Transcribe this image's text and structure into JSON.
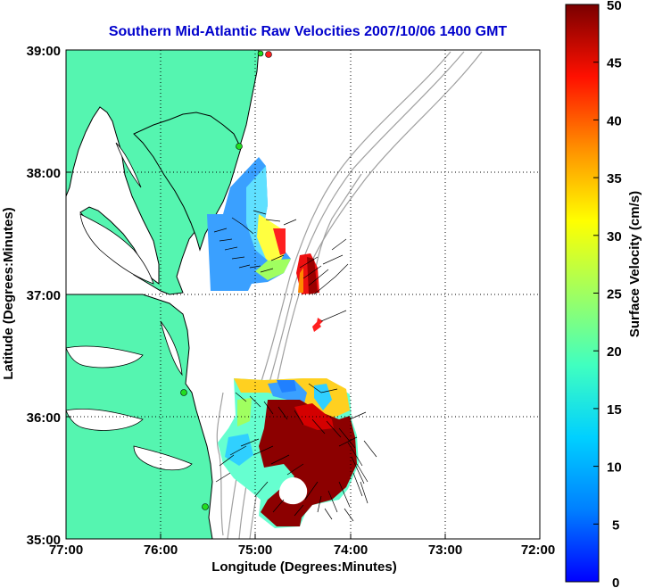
{
  "title": "Southern Mid-Atlantic Raw Velocities 2007/10/06 1400 GMT",
  "x_axis": {
    "label": "Longitude (Degrees:Minutes)",
    "ticks": [
      "77:00",
      "76:00",
      "75:00",
      "74:00",
      "73:00",
      "72:00"
    ]
  },
  "y_axis": {
    "label": "Latitude (Degrees:Minutes)",
    "ticks": [
      "39:00",
      "38:00",
      "37:00",
      "36:00",
      "35:00"
    ]
  },
  "colorbar": {
    "label": "Surface Velocity (cm/s)",
    "ticks": [
      "50",
      "45",
      "40",
      "35",
      "30",
      "25",
      "20",
      "15",
      "10",
      "5",
      "0"
    ],
    "range": [
      0,
      50
    ],
    "colormap": "jet"
  },
  "colors": {
    "land": "#55f5b0",
    "coast": "#000000",
    "bathymetry": "#a0a0a0",
    "station": "#22dd22",
    "title": "#0000cc"
  },
  "map": {
    "lon_range": [
      -77,
      -72
    ],
    "lat_range": [
      35,
      39
    ],
    "grid": "dotted"
  }
}
